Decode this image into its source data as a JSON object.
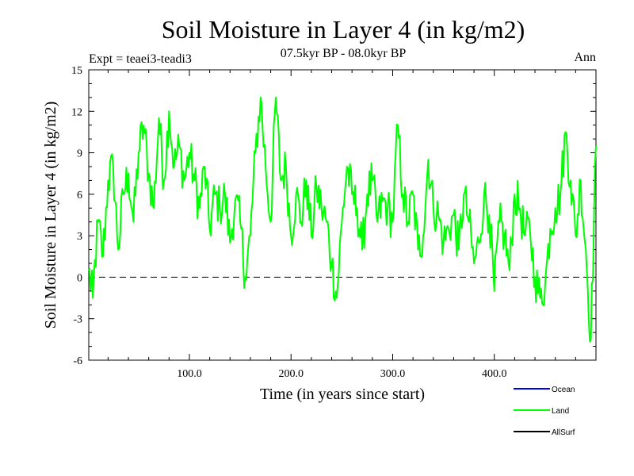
{
  "chart_data": {
    "type": "line",
    "title": "Soil Moisture in Layer 4 (in kg/m2)",
    "subtitle": "07.5kyr BP - 08.0kyr BP",
    "left_note": "Expt = teaei3-teadi3",
    "right_note": "Ann",
    "xlabel": "Time (in years since start)",
    "ylabel": "Soil Moisture in Layer 4 (in kg/m2)",
    "xlim": [
      1,
      500
    ],
    "ylim": [
      -6,
      15
    ],
    "x_ticks": [
      100,
      200,
      300,
      400
    ],
    "x_tick_labels": [
      "100.0",
      "200.0",
      "300.0",
      "400.0"
    ],
    "y_ticks": [
      -6,
      -3,
      0,
      3,
      6,
      9,
      12,
      15
    ],
    "y_tick_labels": [
      "-6",
      "-3",
      "0",
      "3",
      "6",
      "9",
      "12",
      "15"
    ],
    "reference_line": 0,
    "legend": [
      {
        "name": "Ocean",
        "color": "#0000ff"
      },
      {
        "name": "Land",
        "color": "#00ff00"
      },
      {
        "name": "AllSurf",
        "color": "#000000"
      }
    ],
    "series": [
      {
        "name": "Land",
        "color": "#00ff00",
        "x": [
          1,
          5,
          10,
          15,
          20,
          25,
          30,
          35,
          40,
          45,
          50,
          55,
          60,
          65,
          70,
          75,
          80,
          85,
          90,
          95,
          100,
          105,
          110,
          115,
          120,
          125,
          130,
          135,
          140,
          145,
          150,
          155,
          160,
          165,
          170,
          175,
          180,
          185,
          190,
          195,
          200,
          205,
          210,
          215,
          220,
          225,
          230,
          235,
          240,
          245,
          250,
          255,
          260,
          265,
          270,
          275,
          280,
          285,
          290,
          295,
          300,
          305,
          310,
          315,
          320,
          325,
          330,
          335,
          340,
          345,
          350,
          355,
          360,
          365,
          370,
          375,
          380,
          385,
          390,
          395,
          400,
          405,
          410,
          415,
          420,
          425,
          430,
          435,
          440,
          445,
          450,
          455,
          460,
          465,
          470,
          475,
          480,
          485,
          490,
          495,
          500
        ],
        "values": [
          0.5,
          -1.5,
          4.0,
          1.5,
          7.0,
          8.0,
          2.0,
          6.0,
          7.5,
          4.0,
          9.0,
          11.0,
          7.5,
          5.0,
          11.5,
          7.0,
          12.0,
          8.0,
          9.5,
          7.0,
          9.0,
          7.0,
          5.0,
          8.0,
          3.5,
          6.0,
          5.0,
          6.0,
          2.5,
          5.5,
          4.0,
          0.0,
          3.0,
          9.0,
          13.0,
          8.0,
          4.0,
          13.0,
          7.0,
          8.0,
          3.0,
          6.0,
          4.0,
          7.0,
          3.0,
          6.5,
          5.0,
          4.0,
          1.0,
          -1.5,
          4.0,
          8.0,
          6.0,
          5.0,
          2.0,
          6.0,
          7.0,
          4.0,
          5.5,
          5.0,
          4.0,
          11.0,
          6.0,
          4.0,
          6.0,
          2.0,
          3.0,
          8.5,
          5.0,
          4.5,
          2.5,
          3.5,
          4.5,
          2.0,
          6.0,
          4.0,
          1.0,
          2.5,
          6.0,
          4.5,
          -1.0,
          4.0,
          3.0,
          0.5,
          6.0,
          5.0,
          3.0,
          3.5,
          0.0,
          -1.5,
          -0.5,
          3.5,
          5.0,
          6.0,
          10.5,
          7.0,
          3.0,
          7.0,
          2.0,
          -4.5,
          9.5
        ]
      }
    ]
  }
}
